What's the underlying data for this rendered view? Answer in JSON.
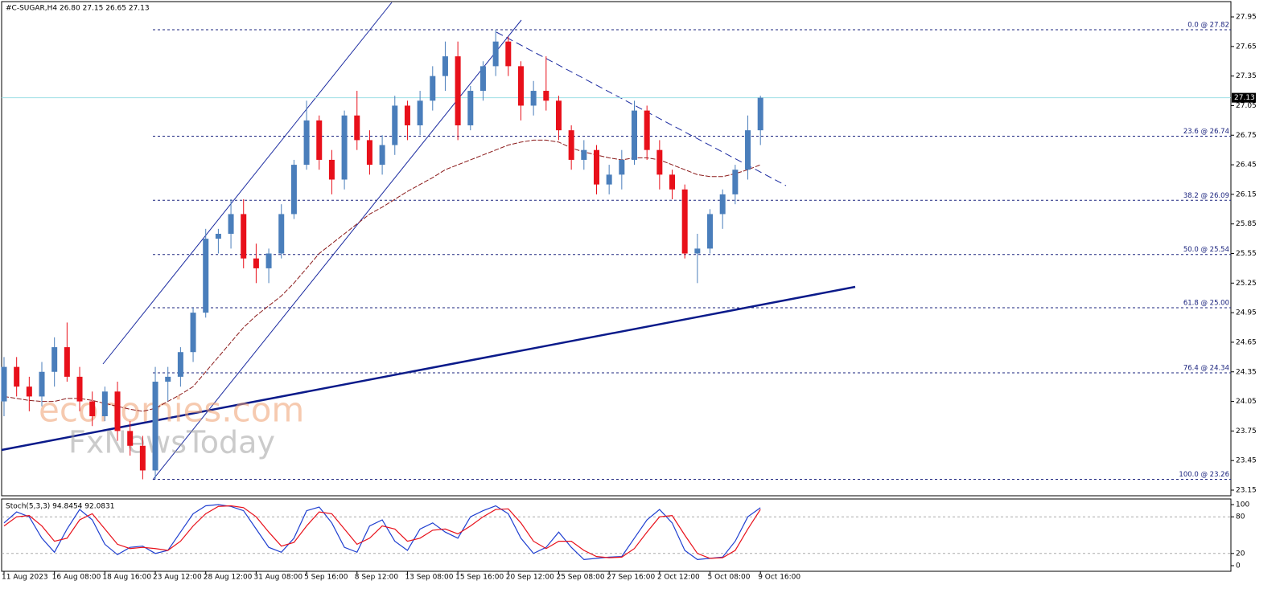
{
  "chart_data": {
    "type": "candlestick",
    "title": "#C-SUGAR,H4  26.80 27.15 26.65 27.13",
    "categories": [
      "11 Aug 2023",
      null,
      null,
      null,
      "16 Aug 08:00",
      null,
      null,
      null,
      "18 Aug 16:00",
      null,
      null,
      null,
      "23 Aug 12:00",
      null,
      null,
      null,
      "28 Aug 12:00",
      null,
      null,
      null,
      "31 Aug 08:00",
      null,
      null,
      null,
      "5 Sep 16:00",
      null,
      null,
      null,
      "8 Sep 12:00",
      null,
      null,
      null,
      "13 Sep 08:00",
      null,
      null,
      null,
      "15 Sep 16:00",
      null,
      null,
      null,
      "20 Sep 12:00",
      null,
      null,
      null,
      "25 Sep 08:00",
      null,
      null,
      null,
      "27 Sep 16:00",
      null,
      null,
      null,
      "2 Oct 12:00",
      null,
      null,
      null,
      "5 Oct 08:00",
      null,
      null,
      null,
      "9 Oct 16:00"
    ],
    "open": [
      24.05,
      24.4,
      24.2,
      24.1,
      24.35,
      24.6,
      24.3,
      24.05,
      23.9,
      24.15,
      23.75,
      23.6,
      23.35,
      24.25,
      24.3,
      24.55,
      24.95,
      25.7,
      25.75,
      25.95,
      25.5,
      25.4,
      25.55,
      25.95,
      26.45,
      26.9,
      26.5,
      26.3,
      26.95,
      26.7,
      26.45,
      26.65,
      27.05,
      26.85,
      27.1,
      27.35,
      27.55,
      26.85,
      27.2,
      27.45,
      27.7,
      27.45,
      27.05,
      27.2,
      27.1,
      26.8,
      26.5,
      26.6,
      26.25,
      26.35,
      26.5,
      27.0,
      26.6,
      26.35,
      26.2,
      25.55,
      25.6,
      25.95,
      26.15,
      26.4,
      26.8
    ],
    "high": [
      24.5,
      24.5,
      24.3,
      24.45,
      24.7,
      24.85,
      24.4,
      24.15,
      24.2,
      24.25,
      23.85,
      23.7,
      24.4,
      24.4,
      24.6,
      25.0,
      25.8,
      25.8,
      26.1,
      26.1,
      25.65,
      25.6,
      26.05,
      26.5,
      27.1,
      26.95,
      26.6,
      27.0,
      27.2,
      26.8,
      26.75,
      27.15,
      27.1,
      27.2,
      27.45,
      27.7,
      27.7,
      27.25,
      27.5,
      27.82,
      27.75,
      27.5,
      27.3,
      27.55,
      27.15,
      26.85,
      26.7,
      26.65,
      26.45,
      26.6,
      27.1,
      27.05,
      26.7,
      26.4,
      26.25,
      25.75,
      26.0,
      26.2,
      26.45,
      26.95,
      27.15
    ],
    "low": [
      23.9,
      24.1,
      23.95,
      24.0,
      24.2,
      24.25,
      23.95,
      23.8,
      23.85,
      23.65,
      23.5,
      23.26,
      23.26,
      24.05,
      24.2,
      24.45,
      24.9,
      25.55,
      25.6,
      25.4,
      25.25,
      25.25,
      25.5,
      25.9,
      26.4,
      26.4,
      26.15,
      26.2,
      26.6,
      26.35,
      26.35,
      26.55,
      26.7,
      26.75,
      27.0,
      27.2,
      26.7,
      26.8,
      27.1,
      27.35,
      27.35,
      26.9,
      26.95,
      27.0,
      26.7,
      26.4,
      26.4,
      26.15,
      26.15,
      26.2,
      26.45,
      26.5,
      26.2,
      26.1,
      25.5,
      25.25,
      25.55,
      25.8,
      26.05,
      26.3,
      26.65
    ],
    "close": [
      24.4,
      24.2,
      24.1,
      24.35,
      24.6,
      24.3,
      24.05,
      23.9,
      24.15,
      23.75,
      23.6,
      23.35,
      24.25,
      24.3,
      24.55,
      24.95,
      25.7,
      25.75,
      25.95,
      25.5,
      25.4,
      25.55,
      25.95,
      26.45,
      26.9,
      26.5,
      26.3,
      26.95,
      26.7,
      26.45,
      26.65,
      27.05,
      26.85,
      27.1,
      27.35,
      27.55,
      26.85,
      27.2,
      27.45,
      27.7,
      27.45,
      27.05,
      27.2,
      27.1,
      26.8,
      26.5,
      26.6,
      26.25,
      26.35,
      26.5,
      27.0,
      26.6,
      26.35,
      26.2,
      25.55,
      25.6,
      25.95,
      26.15,
      26.4,
      26.8,
      27.13
    ],
    "up_color": "#4a7ebb",
    "down_color": "#e8101a",
    "ma": {
      "color": "#8b1a1a",
      "values": [
        24.1,
        24.08,
        24.06,
        24.05,
        24.05,
        24.08,
        24.08,
        24.06,
        24.03,
        24.0,
        23.97,
        23.95,
        23.98,
        24.05,
        24.12,
        24.2,
        24.35,
        24.5,
        24.65,
        24.8,
        24.92,
        25.02,
        25.12,
        25.25,
        25.4,
        25.55,
        25.65,
        25.75,
        25.85,
        25.95,
        26.02,
        26.1,
        26.18,
        26.25,
        26.32,
        26.4,
        26.45,
        26.5,
        26.55,
        26.6,
        26.65,
        26.68,
        26.7,
        26.7,
        26.68,
        26.62,
        26.58,
        26.55,
        26.52,
        26.5,
        26.52,
        26.52,
        26.5,
        26.45,
        26.4,
        26.35,
        26.33,
        26.33,
        26.36,
        26.4,
        26.45
      ]
    },
    "last_price": 27.13,
    "ylim": [
      23.093,
      28.105
    ],
    "yticks": [
      27.95,
      27.65,
      27.35,
      27.05,
      26.75,
      26.45,
      26.15,
      25.85,
      25.55,
      25.25,
      24.95,
      24.65,
      24.35,
      24.05,
      23.75,
      23.45,
      23.15
    ],
    "fib_levels": [
      {
        "value": 27.82,
        "label": "0.0 @ 27.82"
      },
      {
        "value": 26.74,
        "label": "23.6 @ 26.74"
      },
      {
        "value": 26.09,
        "label": "38.2 @ 26.09"
      },
      {
        "value": 25.54,
        "label": "50.0 @ 25.54"
      },
      {
        "value": 25.0,
        "label": "61.8 @ 25.00"
      },
      {
        "value": 24.34,
        "label": "76.4 @ 24.34"
      },
      {
        "value": 23.26,
        "label": "100.0 @ 23.26"
      }
    ],
    "watermark": [
      "economies.com",
      "FxNewsToday"
    ],
    "stoch": {
      "title": "Stoch(5,3,3) 94.8454 92.0831",
      "ylim": [
        -9.2,
        109.2
      ],
      "yticks": [
        0,
        20,
        80,
        100
      ],
      "series": [
        {
          "color": "#1f3fd0",
          "values": [
            70,
            88,
            80,
            45,
            22,
            60,
            92,
            75,
            35,
            18,
            30,
            32,
            20,
            25,
            55,
            85,
            98,
            100,
            97,
            90,
            60,
            30,
            22,
            45,
            90,
            96,
            70,
            30,
            22,
            65,
            75,
            40,
            25,
            60,
            70,
            55,
            45,
            80,
            90,
            98,
            85,
            45,
            20,
            30,
            55,
            30,
            10,
            12,
            14,
            15,
            45,
            75,
            92,
            70,
            25,
            10,
            12,
            14,
            40,
            80,
            94.8454
          ]
        },
        {
          "color": "#e8101a",
          "values": [
            65,
            80,
            82,
            65,
            40,
            45,
            75,
            85,
            60,
            35,
            28,
            30,
            28,
            25,
            40,
            65,
            85,
            97,
            98,
            95,
            80,
            55,
            32,
            38,
            65,
            88,
            85,
            60,
            35,
            45,
            65,
            60,
            40,
            45,
            58,
            60,
            52,
            65,
            80,
            92,
            93,
            70,
            40,
            28,
            40,
            40,
            25,
            15,
            13,
            14,
            28,
            55,
            80,
            82,
            50,
            20,
            12,
            13,
            25,
            60,
            92.0831
          ]
        }
      ]
    }
  }
}
